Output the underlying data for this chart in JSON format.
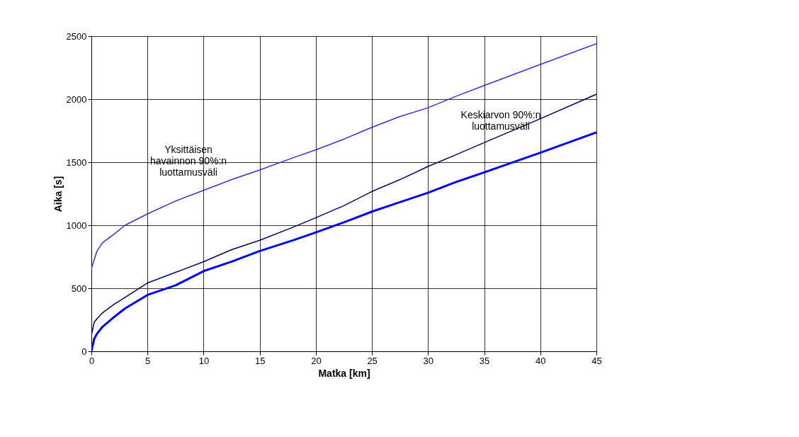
{
  "chart_data": {
    "type": "line",
    "xlabel": "Matka [km]",
    "ylabel": "Aika [s]",
    "xlim": [
      0,
      45
    ],
    "xticks": [
      0,
      5,
      10,
      15,
      20,
      25,
      30,
      35,
      40,
      45
    ],
    "ylim": [
      0,
      2500
    ],
    "yticks": [
      0,
      500,
      1000,
      1500,
      2000,
      2500
    ],
    "grid": true,
    "marker": "none",
    "line_style": "solid",
    "series": [
      {
        "color": "#3333cc",
        "x": [
          0,
          0.5,
          1,
          2,
          3,
          5,
          7.5,
          10,
          12.5,
          15,
          18,
          20,
          22.5,
          25,
          27.5,
          30,
          32.5,
          35,
          40,
          45
        ],
        "values": [
          655,
          796,
          862,
          928,
          1000,
          1090,
          1192,
          1277,
          1362,
          1438,
          1536,
          1598,
          1683,
          1777,
          1862,
          1932,
          2023,
          2108,
          2275,
          2440
        ]
      },
      {
        "color": "#000066",
        "x": [
          0,
          0.25,
          0.5,
          1,
          2,
          3,
          5,
          7.5,
          10,
          12.5,
          15,
          18,
          20,
          22.5,
          25,
          27.5,
          30,
          32.5,
          35,
          40,
          45
        ],
        "values": [
          126,
          230,
          258,
          306,
          372,
          428,
          542,
          626,
          711,
          806,
          881,
          985,
          1060,
          1155,
          1268,
          1362,
          1466,
          1560,
          1655,
          1845,
          2039
        ]
      },
      {
        "color": "#0000ff",
        "x": [
          0,
          0.25,
          0.5,
          1,
          2,
          3,
          5,
          7.5,
          10,
          12.5,
          15,
          18,
          20,
          22.5,
          25,
          27.5,
          30,
          32.5,
          35,
          40,
          45
        ],
        "values": [
          0,
          98,
          140,
          195,
          270,
          340,
          447,
          523,
          636,
          711,
          796,
          881,
          943,
          1023,
          1108,
          1183,
          1258,
          1343,
          1419,
          1575,
          1736
        ]
      }
    ],
    "annotations": [
      "Yksittäisen\nhavainnon 90%:n\nluottamusväli",
      "Keskiarvon 90%:n\nluottamusväli"
    ]
  }
}
